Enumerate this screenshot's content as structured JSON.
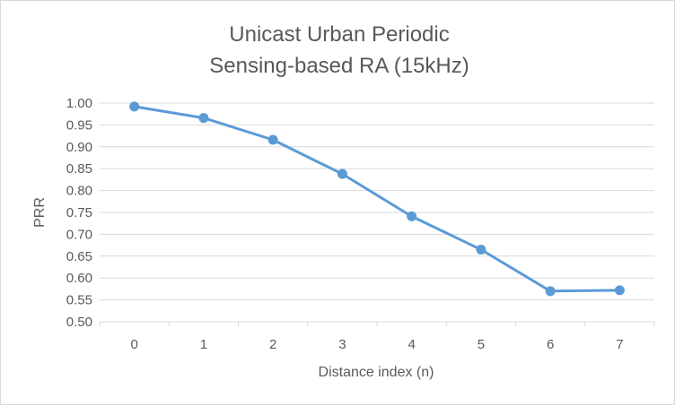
{
  "chart_data": {
    "type": "line",
    "title_lines": [
      "Unicast Urban Periodic",
      "Sensing-based RA (15kHz)"
    ],
    "xlabel": "Distance index (n)",
    "ylabel": "PRR",
    "x": [
      "0",
      "1",
      "2",
      "3",
      "4",
      "5",
      "6",
      "7"
    ],
    "y_ticks": [
      "1.00",
      "0.95",
      "0.90",
      "0.85",
      "0.80",
      "0.75",
      "0.70",
      "0.65",
      "0.60",
      "0.55",
      "0.50"
    ],
    "ylim": [
      0.5,
      1.0
    ],
    "grid": true,
    "legend": "none",
    "series": [
      {
        "values": [
          0.992,
          0.966,
          0.916,
          0.838,
          0.741,
          0.665,
          0.57,
          0.572
        ],
        "color": "#5b9bd5"
      }
    ]
  }
}
